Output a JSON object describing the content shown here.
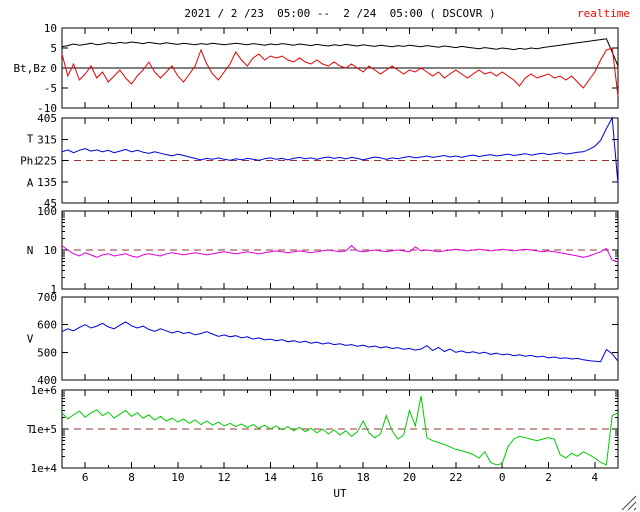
{
  "chart_data": {
    "type": "line",
    "title": "2021 / 2 /23  05:00 --  2 /24  05:00 ( DSCOVR )",
    "realtime_label": "realtime",
    "dashed_color": "#993333",
    "t0": 5,
    "dt": 0.25,
    "x": {
      "label": "UT",
      "range": [
        5,
        29
      ],
      "major_ticks": [
        {
          "t": 6,
          "label": "6"
        },
        {
          "t": 8,
          "label": "8"
        },
        {
          "t": 10,
          "label": "10"
        },
        {
          "t": 12,
          "label": "12"
        },
        {
          "t": 14,
          "label": "14"
        },
        {
          "t": 16,
          "label": "16"
        },
        {
          "t": 18,
          "label": "18"
        },
        {
          "t": 20,
          "label": "20"
        },
        {
          "t": 22,
          "label": "22"
        },
        {
          "t": 24,
          "label": "0"
        },
        {
          "t": 26,
          "label": "2"
        },
        {
          "t": 28,
          "label": "4"
        }
      ]
    },
    "panels": [
      {
        "name": "bt-bz",
        "ylabels": [
          "Bt,Bz"
        ],
        "scale": "linear",
        "ylim": [
          -10,
          10
        ],
        "zero_line": true,
        "yticks": [
          {
            "v": 10,
            "label": "10"
          },
          {
            "v": 5,
            "label": "5"
          },
          {
            "v": 0,
            "label": "0"
          },
          {
            "v": -5,
            "label": "-5"
          },
          {
            "v": -10,
            "label": "-10"
          }
        ],
        "series": [
          {
            "name": "Bt",
            "color": "#000000",
            "values": [
              5.3,
              5.6,
              6.0,
              5.7,
              5.9,
              6.2,
              5.8,
              6.0,
              6.3,
              6.1,
              6.4,
              6.2,
              6.5,
              6.3,
              6.1,
              6.4,
              6.2,
              6.0,
              6.3,
              6.1,
              5.9,
              6.2,
              6.0,
              5.8,
              6.1,
              5.9,
              6.2,
              6.0,
              5.8,
              6.0,
              6.2,
              6.0,
              5.8,
              6.1,
              5.9,
              5.7,
              6.0,
              5.8,
              6.1,
              5.9,
              5.7,
              6.0,
              5.8,
              5.6,
              5.9,
              5.7,
              5.5,
              5.8,
              5.6,
              5.9,
              5.7,
              5.5,
              5.8,
              5.6,
              5.4,
              5.7,
              5.5,
              5.3,
              5.6,
              5.4,
              5.7,
              5.5,
              5.3,
              5.6,
              5.4,
              5.2,
              5.5,
              5.3,
              5.1,
              5.4,
              5.2,
              5.0,
              4.8,
              5.1,
              4.9,
              4.7,
              5.0,
              4.8,
              4.6,
              4.9,
              4.7,
              5.0,
              4.8,
              5.1,
              5.3,
              5.5,
              5.7,
              5.9,
              6.1,
              6.3,
              6.5,
              6.7,
              6.9,
              7.1,
              7.3,
              4.0,
              0.5
            ]
          },
          {
            "name": "Bz",
            "color": "#e60000",
            "values": [
              3.5,
              -2.0,
              1.0,
              -3.0,
              -1.5,
              0.5,
              -2.5,
              -1.0,
              -3.5,
              -2.0,
              -0.5,
              -2.5,
              -4.0,
              -2.0,
              -0.5,
              1.5,
              -1.0,
              -2.5,
              -1.0,
              0.5,
              -2.0,
              -3.5,
              -1.5,
              0.5,
              4.5,
              1.0,
              -1.5,
              -3.0,
              -1.0,
              1.0,
              4.0,
              2.0,
              0.5,
              2.5,
              3.5,
              2.0,
              3.0,
              2.5,
              3.0,
              2.0,
              1.5,
              2.5,
              1.5,
              1.0,
              2.0,
              1.0,
              0.5,
              1.5,
              0.5,
              0.0,
              1.0,
              0.0,
              -1.0,
              0.5,
              -0.5,
              -1.5,
              -0.5,
              0.5,
              -0.5,
              -1.5,
              -0.5,
              -1.0,
              0.0,
              -1.0,
              -2.0,
              -1.0,
              -2.5,
              -1.5,
              -0.5,
              -1.5,
              -2.5,
              -1.5,
              -0.5,
              -1.5,
              -1.0,
              -2.0,
              -1.0,
              -2.0,
              -3.0,
              -4.5,
              -2.5,
              -1.5,
              -2.5,
              -2.0,
              -1.5,
              -2.5,
              -2.0,
              -3.0,
              -2.0,
              -3.5,
              -5.0,
              -3.0,
              -1.0,
              2.0,
              4.5,
              5.0,
              -7.0
            ]
          }
        ]
      },
      {
        "name": "phi",
        "ylabels": [
          "T",
          "Phi",
          "A"
        ],
        "scale": "linear",
        "ylim": [
          45,
          405
        ],
        "dashed": 225,
        "yticks": [
          {
            "v": 405,
            "label": "405"
          },
          {
            "v": 315,
            "label": "315"
          },
          {
            "v": 225,
            "label": "225"
          },
          {
            "v": 135,
            "label": "135"
          },
          {
            "v": 45,
            "label": "45"
          }
        ],
        "series": [
          {
            "name": "Phi",
            "color": "#0000dd",
            "values": [
              262,
              270,
              258,
              268,
              275,
              265,
              270,
              262,
              268,
              258,
              265,
              272,
              262,
              268,
              260,
              255,
              262,
              256,
              250,
              245,
              252,
              246,
              240,
              234,
              228,
              234,
              230,
              236,
              230,
              226,
              232,
              228,
              234,
              230,
              226,
              232,
              236,
              230,
              234,
              228,
              234,
              238,
              232,
              236,
              230,
              236,
              240,
              234,
              238,
              232,
              238,
              234,
              228,
              234,
              240,
              236,
              230,
              236,
              232,
              238,
              242,
              236,
              240,
              244,
              238,
              242,
              246,
              240,
              244,
              238,
              244,
              248,
              242,
              246,
              250,
              244,
              248,
              252,
              246,
              250,
              254,
              248,
              252,
              256,
              250,
              254,
              258,
              252,
              256,
              260,
              262,
              272,
              285,
              310,
              360,
              405,
              125
            ]
          }
        ]
      },
      {
        "name": "n",
        "ylabels": [
          "N"
        ],
        "scale": "log",
        "ylim": [
          1,
          100
        ],
        "dashed": 10,
        "yticks": [
          {
            "v": 100,
            "label": "100"
          },
          {
            "v": 10,
            "label": "10"
          },
          {
            "v": 1,
            "label": "1"
          }
        ],
        "series": [
          {
            "name": "N",
            "color": "#dd00dd",
            "values": [
              13,
              10,
              8,
              7,
              8.5,
              7.5,
              6.5,
              7.5,
              8,
              7,
              7.5,
              8,
              7,
              6.5,
              7.5,
              8,
              7.5,
              7,
              8,
              8.5,
              8,
              7.5,
              8,
              8.5,
              8,
              7.5,
              8,
              8.5,
              9,
              8.5,
              8,
              8.5,
              9,
              8.5,
              8,
              8.5,
              9,
              9.5,
              9,
              8.5,
              9,
              9.5,
              9,
              8.5,
              9,
              9.5,
              10,
              9.5,
              9,
              9.5,
              13,
              9.5,
              9,
              9.5,
              10,
              9.5,
              9,
              9.5,
              10,
              9.5,
              9,
              12,
              9.5,
              10,
              9.5,
              9,
              9.5,
              10,
              10.5,
              10,
              9.5,
              10,
              10.5,
              10,
              9.5,
              10,
              10.5,
              10,
              9.5,
              10,
              10.5,
              10,
              9.5,
              9,
              9.5,
              9,
              8.5,
              8,
              7.5,
              7,
              6.5,
              7,
              8,
              9,
              11,
              5.5,
              5
            ]
          }
        ]
      },
      {
        "name": "v",
        "ylabels": [
          "V"
        ],
        "scale": "linear",
        "ylim": [
          400,
          700
        ],
        "yticks": [
          {
            "v": 700,
            "label": "700"
          },
          {
            "v": 600,
            "label": "600"
          },
          {
            "v": 500,
            "label": "500"
          },
          {
            "v": 400,
            "label": "400"
          }
        ],
        "series": [
          {
            "name": "V",
            "color": "#0000dd",
            "values": [
              575,
              585,
              578,
              590,
              600,
              588,
              595,
              605,
              592,
              585,
              598,
              610,
              596,
              588,
              595,
              583,
              576,
              585,
              578,
              570,
              576,
              568,
              572,
              563,
              568,
              575,
              566,
              558,
              563,
              556,
              560,
              552,
              556,
              548,
              552,
              545,
              548,
              542,
              546,
              538,
              542,
              536,
              540,
              533,
              537,
              530,
              534,
              528,
              531,
              525,
              528,
              522,
              526,
              519,
              523,
              516,
              520,
              514,
              517,
              511,
              514,
              508,
              512,
              524,
              507,
              518,
              503,
              512,
              500,
              505,
              498,
              502,
              496,
              500,
              493,
              497,
              491,
              494,
              488,
              491,
              486,
              489,
              483,
              486,
              480,
              483,
              478,
              480,
              476,
              478,
              473,
              470,
              468,
              466,
              510,
              495,
              468
            ]
          }
        ]
      },
      {
        "name": "t",
        "ylabels": [
          "T"
        ],
        "scale": "log",
        "ylim": [
          10000,
          1000000
        ],
        "dashed": 100000,
        "yticks": [
          {
            "v": 1000000,
            "label": "1e+6"
          },
          {
            "v": 100000,
            "label": "1e+5"
          },
          {
            "v": 10000,
            "label": "1e+4"
          }
        ],
        "series": [
          {
            "name": "T",
            "color": "#00cc00",
            "values": [
              260000,
              180000,
              230000,
              290000,
              200000,
              260000,
              310000,
              220000,
              270000,
              190000,
              240000,
              300000,
              210000,
              260000,
              190000,
              230000,
              170000,
              210000,
              160000,
              190000,
              150000,
              180000,
              140000,
              170000,
              130000,
              160000,
              125000,
              150000,
              120000,
              140000,
              115000,
              135000,
              110000,
              130000,
              105000,
              125000,
              100000,
              120000,
              95000,
              115000,
              90000,
              110000,
              85000,
              105000,
              80000,
              100000,
              75000,
              95000,
              70000,
              90000,
              65000,
              85000,
              160000,
              80000,
              60000,
              75000,
              220000,
              90000,
              55000,
              70000,
              300000,
              120000,
              700000,
              60000,
              50000,
              45000,
              40000,
              35000,
              30000,
              28000,
              25000,
              22000,
              18000,
              26000,
              14000,
              12000,
              13000,
              35000,
              55000,
              65000,
              60000,
              55000,
              50000,
              55000,
              60000,
              55000,
              22000,
              18000,
              24000,
              20000,
              26000,
              22000,
              18000,
              14000,
              12000,
              220000,
              260000
            ]
          }
        ]
      }
    ]
  }
}
